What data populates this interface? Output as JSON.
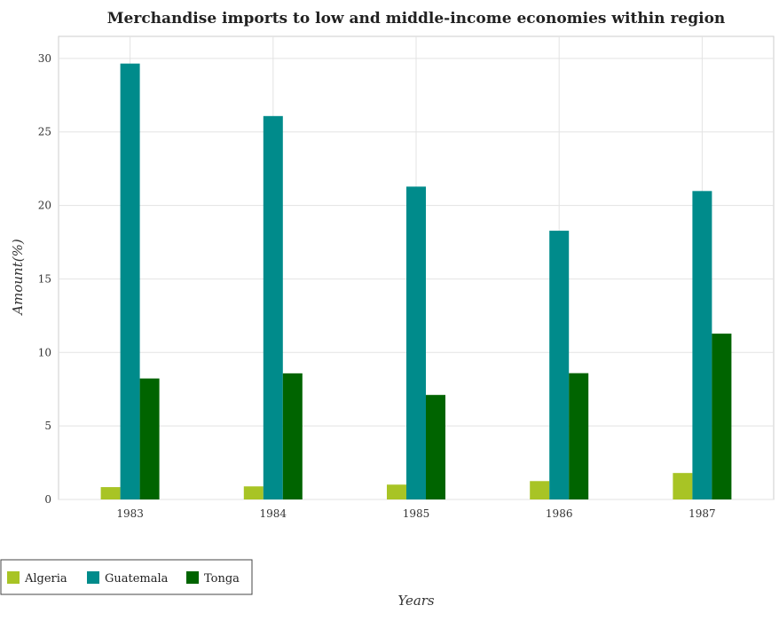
{
  "chart_data": {
    "type": "bar",
    "title": "Merchandise imports to low and middle-income economies within region",
    "xlabel": "Years",
    "ylabel": "Amount(%)",
    "categories": [
      "1983",
      "1984",
      "1985",
      "1986",
      "1987"
    ],
    "ylim": [
      0,
      31.5
    ],
    "yticks": [
      0,
      5,
      10,
      15,
      20,
      25,
      30
    ],
    "grid": true,
    "legend_position": "bottom-left",
    "series": [
      {
        "name": "Algeria",
        "color": "#a8c425",
        "values": [
          0.84,
          0.89,
          1.01,
          1.25,
          1.8
        ]
      },
      {
        "name": "Guatemala",
        "color": "#008b8b",
        "values": [
          29.65,
          26.08,
          21.28,
          18.28,
          20.98
        ]
      },
      {
        "name": "Tonga",
        "color": "#006400",
        "values": [
          8.23,
          8.58,
          7.11,
          8.59,
          11.28
        ]
      }
    ]
  }
}
